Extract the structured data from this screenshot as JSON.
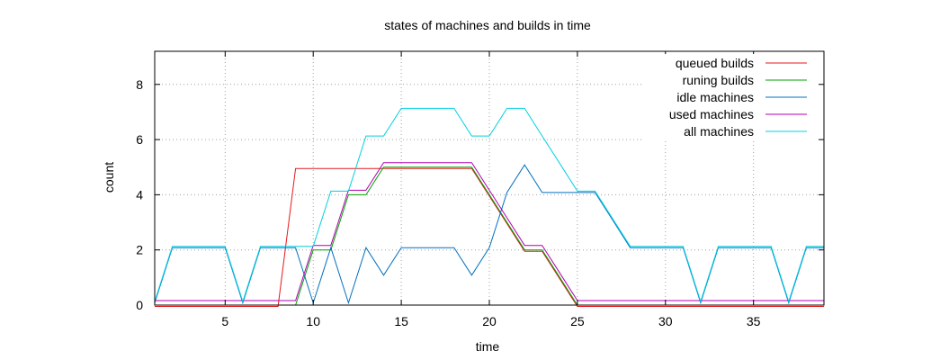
{
  "chart_data": {
    "type": "line",
    "title": "states of machines and builds in time",
    "xlabel": "time",
    "ylabel": "count",
    "xlim": [
      1,
      39
    ],
    "ylim": [
      0,
      9.2
    ],
    "xticks": [
      "5",
      "10",
      "15",
      "20",
      "25",
      "30",
      "35"
    ],
    "yticks": [
      "0",
      "2",
      "4",
      "6",
      "8"
    ],
    "grid": true,
    "legend_position": "top-right",
    "x": [
      1,
      2,
      3,
      4,
      5,
      6,
      7,
      8,
      9,
      10,
      11,
      12,
      13,
      14,
      15,
      16,
      17,
      18,
      19,
      20,
      21,
      22,
      23,
      24,
      25,
      26,
      27,
      28,
      29,
      30,
      31,
      32,
      33,
      34,
      35,
      36,
      37,
      38,
      39
    ],
    "series": [
      {
        "name": "queued builds",
        "color": "#e41a1c",
        "values": [
          0,
          0,
          0,
          0,
          0,
          0,
          0,
          0,
          5,
          5,
          5,
          5,
          5,
          5,
          5,
          5,
          5,
          5,
          5,
          4,
          3,
          2,
          2,
          1,
          0,
          0,
          0,
          0,
          0,
          0,
          0,
          0,
          0,
          0,
          0,
          0,
          0,
          0,
          0
        ]
      },
      {
        "name": "runing builds",
        "color": "#00a000",
        "values": [
          0,
          0,
          0,
          0,
          0,
          0,
          0,
          0,
          0,
          2,
          2,
          4,
          4,
          5,
          5,
          5,
          5,
          5,
          5,
          4,
          3,
          2,
          2,
          1,
          0,
          0,
          0,
          0,
          0,
          0,
          0,
          0,
          0,
          0,
          0,
          0,
          0,
          0,
          0
        ]
      },
      {
        "name": "idle machines",
        "color": "#0070c0",
        "values": [
          0,
          2,
          2,
          2,
          2,
          0,
          2,
          2,
          2,
          0,
          2,
          0,
          2,
          1,
          2,
          2,
          2,
          2,
          1,
          2,
          4,
          5,
          4,
          4,
          4,
          4,
          3,
          2,
          2,
          2,
          2,
          0,
          2,
          2,
          2,
          2,
          0,
          2,
          2
        ]
      },
      {
        "name": "used machines",
        "color": "#b000b0",
        "values": [
          0,
          0,
          0,
          0,
          0,
          0,
          0,
          0,
          0,
          2,
          2,
          4,
          4,
          5,
          5,
          5,
          5,
          5,
          5,
          4,
          3,
          2,
          2,
          1,
          0,
          0,
          0,
          0,
          0,
          0,
          0,
          0,
          0,
          0,
          0,
          0,
          0,
          0,
          0
        ]
      },
      {
        "name": "all machines",
        "color": "#00d0e0",
        "values": [
          0,
          2,
          2,
          2,
          2,
          0,
          2,
          2,
          2,
          2,
          4,
          4,
          6,
          6,
          7,
          7,
          7,
          7,
          6,
          6,
          7,
          7,
          6,
          5,
          4,
          4,
          3,
          2,
          2,
          2,
          2,
          0,
          2,
          2,
          2,
          2,
          0,
          2,
          2
        ]
      }
    ]
  }
}
